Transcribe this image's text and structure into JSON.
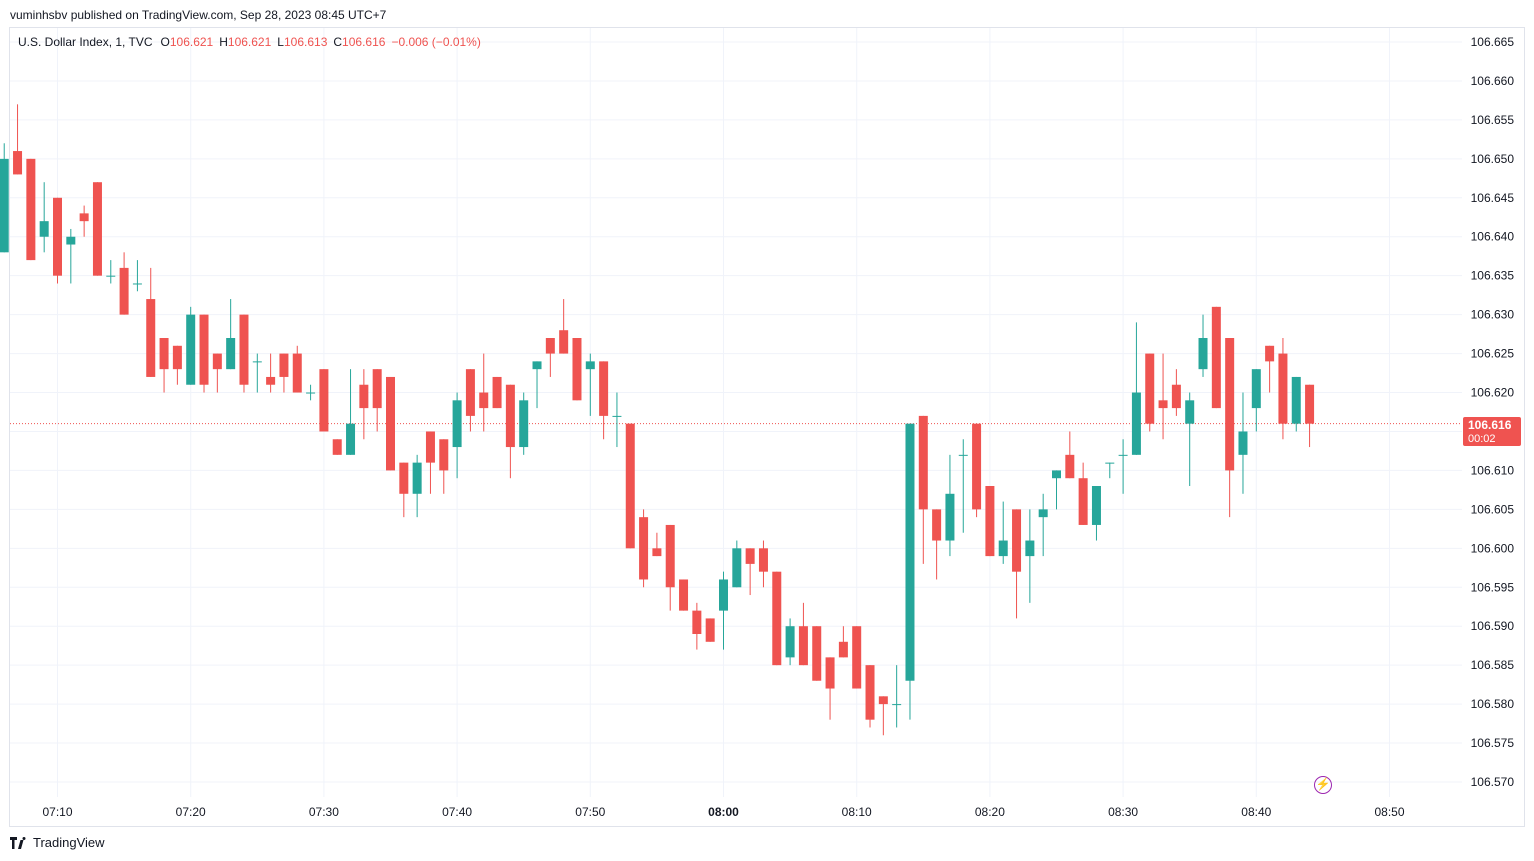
{
  "attribution": "vuminhsbv published on TradingView.com, Sep 28, 2023 08:45 UTC+7",
  "legend": {
    "symbol": "U.S. Dollar Index, 1, TVC",
    "open_label": "O",
    "open": "106.621",
    "high_label": "H",
    "high": "106.621",
    "low_label": "L",
    "low": "106.613",
    "close_label": "C",
    "close": "106.616",
    "change": "−0.006 (−0.01%)"
  },
  "last_price_tag": {
    "price": "106.616",
    "countdown": "00:02"
  },
  "brand": "TradingView",
  "icons": {
    "brand": "tradingview-logo-icon",
    "replay": "lightning-icon"
  },
  "colors": {
    "up": "#26a69a",
    "down": "#ef5350",
    "grid": "#f0f3fa",
    "price_line": "#ef5350"
  },
  "chart_data": {
    "type": "candlestick",
    "interval_minutes": 1,
    "ylim": [
      106.5685,
      106.6665
    ],
    "y_ticks": [
      "106.665",
      "106.660",
      "106.655",
      "106.650",
      "106.645",
      "106.640",
      "106.635",
      "106.630",
      "106.625",
      "106.620",
      "106.615",
      "106.610",
      "106.605",
      "106.600",
      "106.595",
      "106.590",
      "106.585",
      "106.580",
      "106.575",
      "106.570"
    ],
    "x_ticks": [
      {
        "time": "07:10",
        "bold": false
      },
      {
        "time": "07:20",
        "bold": false
      },
      {
        "time": "07:30",
        "bold": false
      },
      {
        "time": "07:40",
        "bold": false
      },
      {
        "time": "07:50",
        "bold": false
      },
      {
        "time": "08:00",
        "bold": true
      },
      {
        "time": "08:10",
        "bold": false
      },
      {
        "time": "08:20",
        "bold": false
      },
      {
        "time": "08:30",
        "bold": false
      },
      {
        "time": "08:40",
        "bold": false
      },
      {
        "time": "08:50",
        "bold": false
      }
    ],
    "last_price": 106.616,
    "candles": [
      {
        "t": "07:06",
        "o": 106.638,
        "h": 106.652,
        "l": 106.638,
        "c": 106.65
      },
      {
        "t": "07:07",
        "o": 106.651,
        "h": 106.657,
        "l": 106.648,
        "c": 106.648
      },
      {
        "t": "07:08",
        "o": 106.65,
        "h": 106.65,
        "l": 106.637,
        "c": 106.637
      },
      {
        "t": "07:09",
        "o": 106.64,
        "h": 106.647,
        "l": 106.638,
        "c": 106.642
      },
      {
        "t": "07:10",
        "o": 106.645,
        "h": 106.645,
        "l": 106.634,
        "c": 106.635
      },
      {
        "t": "07:11",
        "o": 106.639,
        "h": 106.641,
        "l": 106.634,
        "c": 106.64
      },
      {
        "t": "07:12",
        "o": 106.643,
        "h": 106.644,
        "l": 106.64,
        "c": 106.642
      },
      {
        "t": "07:13",
        "o": 106.647,
        "h": 106.647,
        "l": 106.635,
        "c": 106.635
      },
      {
        "t": "07:14",
        "o": 106.635,
        "h": 106.637,
        "l": 106.634,
        "c": 106.635
      },
      {
        "t": "07:15",
        "o": 106.636,
        "h": 106.638,
        "l": 106.63,
        "c": 106.63
      },
      {
        "t": "07:16",
        "o": 106.634,
        "h": 106.637,
        "l": 106.633,
        "c": 106.634
      },
      {
        "t": "07:17",
        "o": 106.632,
        "h": 106.636,
        "l": 106.622,
        "c": 106.622
      },
      {
        "t": "07:18",
        "o": 106.627,
        "h": 106.627,
        "l": 106.62,
        "c": 106.623
      },
      {
        "t": "07:19",
        "o": 106.626,
        "h": 106.626,
        "l": 106.621,
        "c": 106.623
      },
      {
        "t": "07:20",
        "o": 106.621,
        "h": 106.631,
        "l": 106.621,
        "c": 106.63
      },
      {
        "t": "07:21",
        "o": 106.63,
        "h": 106.63,
        "l": 106.62,
        "c": 106.621
      },
      {
        "t": "07:22",
        "o": 106.625,
        "h": 106.625,
        "l": 106.62,
        "c": 106.623
      },
      {
        "t": "07:23",
        "o": 106.623,
        "h": 106.632,
        "l": 106.623,
        "c": 106.627
      },
      {
        "t": "07:24",
        "o": 106.63,
        "h": 106.63,
        "l": 106.62,
        "c": 106.621
      },
      {
        "t": "07:25",
        "o": 106.624,
        "h": 106.625,
        "l": 106.62,
        "c": 106.624
      },
      {
        "t": "07:26",
        "o": 106.622,
        "h": 106.625,
        "l": 106.62,
        "c": 106.621
      },
      {
        "t": "07:27",
        "o": 106.625,
        "h": 106.625,
        "l": 106.62,
        "c": 106.622
      },
      {
        "t": "07:28",
        "o": 106.625,
        "h": 106.626,
        "l": 106.62,
        "c": 106.62
      },
      {
        "t": "07:29",
        "o": 106.62,
        "h": 106.621,
        "l": 106.619,
        "c": 106.62
      },
      {
        "t": "07:30",
        "o": 106.623,
        "h": 106.623,
        "l": 106.615,
        "c": 106.615
      },
      {
        "t": "07:31",
        "o": 106.614,
        "h": 106.614,
        "l": 106.612,
        "c": 106.612
      },
      {
        "t": "07:32",
        "o": 106.612,
        "h": 106.623,
        "l": 106.612,
        "c": 106.616
      },
      {
        "t": "07:33",
        "o": 106.621,
        "h": 106.623,
        "l": 106.614,
        "c": 106.618
      },
      {
        "t": "07:34",
        "o": 106.623,
        "h": 106.623,
        "l": 106.615,
        "c": 106.618
      },
      {
        "t": "07:35",
        "o": 106.622,
        "h": 106.622,
        "l": 106.61,
        "c": 106.61
      },
      {
        "t": "07:36",
        "o": 106.611,
        "h": 106.611,
        "l": 106.604,
        "c": 106.607
      },
      {
        "t": "07:37",
        "o": 106.607,
        "h": 106.612,
        "l": 106.604,
        "c": 106.611
      },
      {
        "t": "07:38",
        "o": 106.615,
        "h": 106.615,
        "l": 106.607,
        "c": 106.611
      },
      {
        "t": "07:39",
        "o": 106.614,
        "h": 106.614,
        "l": 106.607,
        "c": 106.61
      },
      {
        "t": "07:40",
        "o": 106.613,
        "h": 106.62,
        "l": 106.609,
        "c": 106.619
      },
      {
        "t": "07:41",
        "o": 106.623,
        "h": 106.623,
        "l": 106.615,
        "c": 106.617
      },
      {
        "t": "07:42",
        "o": 106.62,
        "h": 106.625,
        "l": 106.615,
        "c": 106.618
      },
      {
        "t": "07:43",
        "o": 106.622,
        "h": 106.622,
        "l": 106.618,
        "c": 106.618
      },
      {
        "t": "07:44",
        "o": 106.621,
        "h": 106.621,
        "l": 106.609,
        "c": 106.613
      },
      {
        "t": "07:45",
        "o": 106.613,
        "h": 106.62,
        "l": 106.612,
        "c": 106.619
      },
      {
        "t": "07:46",
        "o": 106.623,
        "h": 106.624,
        "l": 106.618,
        "c": 106.624
      },
      {
        "t": "07:47",
        "o": 106.627,
        "h": 106.627,
        "l": 106.622,
        "c": 106.625
      },
      {
        "t": "07:48",
        "o": 106.628,
        "h": 106.632,
        "l": 106.625,
        "c": 106.625
      },
      {
        "t": "07:49",
        "o": 106.627,
        "h": 106.627,
        "l": 106.619,
        "c": 106.619
      },
      {
        "t": "07:50",
        "o": 106.623,
        "h": 106.625,
        "l": 106.617,
        "c": 106.624
      },
      {
        "t": "07:51",
        "o": 106.624,
        "h": 106.624,
        "l": 106.614,
        "c": 106.617
      },
      {
        "t": "07:52",
        "o": 106.617,
        "h": 106.62,
        "l": 106.613,
        "c": 106.617
      },
      {
        "t": "07:53",
        "o": 106.616,
        "h": 106.616,
        "l": 106.6,
        "c": 106.6
      },
      {
        "t": "07:54",
        "o": 106.604,
        "h": 106.605,
        "l": 106.595,
        "c": 106.596
      },
      {
        "t": "07:55",
        "o": 106.6,
        "h": 106.602,
        "l": 106.599,
        "c": 106.599
      },
      {
        "t": "07:56",
        "o": 106.603,
        "h": 106.603,
        "l": 106.592,
        "c": 106.595
      },
      {
        "t": "07:57",
        "o": 106.596,
        "h": 106.596,
        "l": 106.592,
        "c": 106.592
      },
      {
        "t": "07:58",
        "o": 106.592,
        "h": 106.593,
        "l": 106.587,
        "c": 106.589
      },
      {
        "t": "07:59",
        "o": 106.591,
        "h": 106.591,
        "l": 106.588,
        "c": 106.588
      },
      {
        "t": "08:00",
        "o": 106.592,
        "h": 106.597,
        "l": 106.587,
        "c": 106.596
      },
      {
        "t": "08:01",
        "o": 106.595,
        "h": 106.601,
        "l": 106.595,
        "c": 106.6
      },
      {
        "t": "08:02",
        "o": 106.6,
        "h": 106.6,
        "l": 106.594,
        "c": 106.598
      },
      {
        "t": "08:03",
        "o": 106.6,
        "h": 106.601,
        "l": 106.595,
        "c": 106.597
      },
      {
        "t": "08:04",
        "o": 106.597,
        "h": 106.597,
        "l": 106.585,
        "c": 106.585
      },
      {
        "t": "08:05",
        "o": 106.586,
        "h": 106.591,
        "l": 106.585,
        "c": 106.59
      },
      {
        "t": "08:06",
        "o": 106.59,
        "h": 106.593,
        "l": 106.585,
        "c": 106.585
      },
      {
        "t": "08:07",
        "o": 106.59,
        "h": 106.59,
        "l": 106.583,
        "c": 106.583
      },
      {
        "t": "08:08",
        "o": 106.586,
        "h": 106.586,
        "l": 106.578,
        "c": 106.582
      },
      {
        "t": "08:09",
        "o": 106.588,
        "h": 106.59,
        "l": 106.586,
        "c": 106.586
      },
      {
        "t": "08:10",
        "o": 106.59,
        "h": 106.59,
        "l": 106.582,
        "c": 106.582
      },
      {
        "t": "08:11",
        "o": 106.585,
        "h": 106.585,
        "l": 106.577,
        "c": 106.578
      },
      {
        "t": "08:12",
        "o": 106.581,
        "h": 106.581,
        "l": 106.576,
        "c": 106.58
      },
      {
        "t": "08:13",
        "o": 106.58,
        "h": 106.585,
        "l": 106.577,
        "c": 106.58
      },
      {
        "t": "08:14",
        "o": 106.583,
        "h": 106.616,
        "l": 106.578,
        "c": 106.616
      },
      {
        "t": "08:15",
        "o": 106.617,
        "h": 106.617,
        "l": 106.598,
        "c": 106.605
      },
      {
        "t": "08:16",
        "o": 106.605,
        "h": 106.605,
        "l": 106.596,
        "c": 106.601
      },
      {
        "t": "08:17",
        "o": 106.601,
        "h": 106.612,
        "l": 106.599,
        "c": 106.607
      },
      {
        "t": "08:18",
        "o": 106.612,
        "h": 106.614,
        "l": 106.602,
        "c": 106.612
      },
      {
        "t": "08:19",
        "o": 106.616,
        "h": 106.616,
        "l": 106.604,
        "c": 106.605
      },
      {
        "t": "08:20",
        "o": 106.608,
        "h": 106.608,
        "l": 106.599,
        "c": 106.599
      },
      {
        "t": "08:21",
        "o": 106.599,
        "h": 106.606,
        "l": 106.598,
        "c": 106.601
      },
      {
        "t": "08:22",
        "o": 106.605,
        "h": 106.605,
        "l": 106.591,
        "c": 106.597
      },
      {
        "t": "08:23",
        "o": 106.599,
        "h": 106.605,
        "l": 106.593,
        "c": 106.601
      },
      {
        "t": "08:24",
        "o": 106.604,
        "h": 106.607,
        "l": 106.599,
        "c": 106.605
      },
      {
        "t": "08:25",
        "o": 106.609,
        "h": 106.61,
        "l": 106.605,
        "c": 106.61
      },
      {
        "t": "08:26",
        "o": 106.612,
        "h": 106.615,
        "l": 106.609,
        "c": 106.609
      },
      {
        "t": "08:27",
        "o": 106.609,
        "h": 106.611,
        "l": 106.603,
        "c": 106.603
      },
      {
        "t": "08:28",
        "o": 106.603,
        "h": 106.608,
        "l": 106.601,
        "c": 106.608
      },
      {
        "t": "08:29",
        "o": 106.611,
        "h": 106.611,
        "l": 106.609,
        "c": 106.611
      },
      {
        "t": "08:30",
        "o": 106.612,
        "h": 106.614,
        "l": 106.607,
        "c": 106.612
      },
      {
        "t": "08:31",
        "o": 106.612,
        "h": 106.629,
        "l": 106.612,
        "c": 106.62
      },
      {
        "t": "08:32",
        "o": 106.625,
        "h": 106.625,
        "l": 106.615,
        "c": 106.616
      },
      {
        "t": "08:33",
        "o": 106.619,
        "h": 106.625,
        "l": 106.614,
        "c": 106.618
      },
      {
        "t": "08:34",
        "o": 106.621,
        "h": 106.623,
        "l": 106.617,
        "c": 106.618
      },
      {
        "t": "08:35",
        "o": 106.616,
        "h": 106.62,
        "l": 106.608,
        "c": 106.619
      },
      {
        "t": "08:36",
        "o": 106.623,
        "h": 106.63,
        "l": 106.622,
        "c": 106.627
      },
      {
        "t": "08:37",
        "o": 106.631,
        "h": 106.631,
        "l": 106.618,
        "c": 106.618
      },
      {
        "t": "08:38",
        "o": 106.627,
        "h": 106.627,
        "l": 106.604,
        "c": 106.61
      },
      {
        "t": "08:39",
        "o": 106.612,
        "h": 106.62,
        "l": 106.607,
        "c": 106.615
      },
      {
        "t": "08:40",
        "o": 106.618,
        "h": 106.623,
        "l": 106.615,
        "c": 106.623
      },
      {
        "t": "08:41",
        "o": 106.626,
        "h": 106.626,
        "l": 106.62,
        "c": 106.624
      },
      {
        "t": "08:42",
        "o": 106.625,
        "h": 106.627,
        "l": 106.614,
        "c": 106.616
      },
      {
        "t": "08:43",
        "o": 106.616,
        "h": 106.622,
        "l": 106.615,
        "c": 106.622
      },
      {
        "t": "08:44",
        "o": 106.621,
        "h": 106.621,
        "l": 106.613,
        "c": 106.616
      }
    ]
  }
}
